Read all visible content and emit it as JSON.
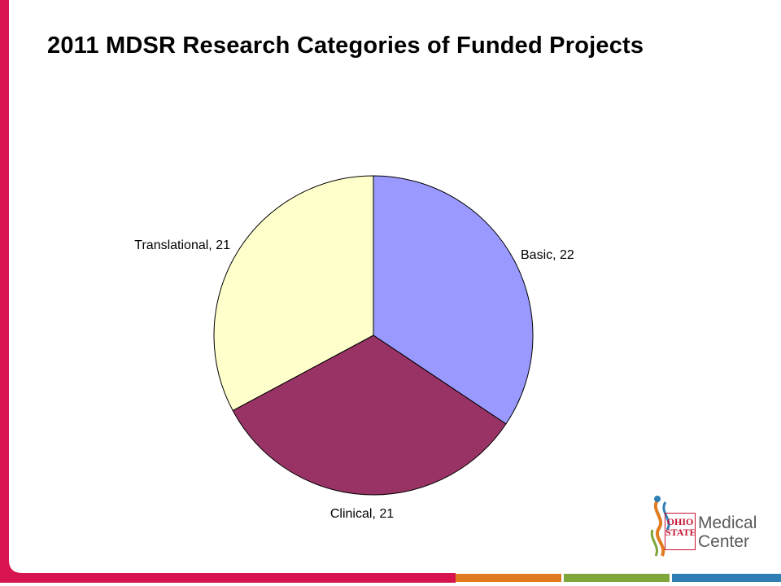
{
  "slide": {
    "title": "2011 MDSR Research Categories of Funded Projects"
  },
  "chart_data": {
    "type": "pie",
    "title": "2011 MDSR Research Categories of Funded Projects",
    "slices": [
      {
        "label": "Basic, 22",
        "category": "Basic",
        "value": 22,
        "color": "#9999ff"
      },
      {
        "label": "Clinical, 21",
        "category": "Clinical",
        "value": 21,
        "color": "#993366"
      },
      {
        "label": "Translational, 21",
        "category": "Translational",
        "value": 21,
        "color": "#ffffcc"
      }
    ],
    "legend": "none"
  },
  "logo": {
    "line1": "Medical",
    "line2": "Center",
    "osu_line1": "OHIO",
    "osu_line2": "STATE"
  },
  "colors": {
    "accent_red": "#d7144f",
    "footer": [
      "#d7144f",
      "#e07b1f",
      "#7ea63a",
      "#2f7fb5"
    ]
  }
}
